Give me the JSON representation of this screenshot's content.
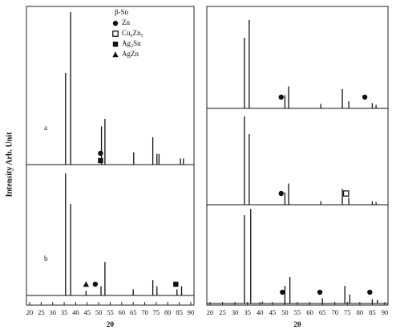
{
  "chart_data": [
    {
      "type": "spectrum",
      "ylabel": "Intensity  Arb. Unit",
      "xlabel": "2θ",
      "xlim": [
        20,
        90
      ],
      "xticks": [
        20,
        25,
        30,
        35,
        40,
        45,
        50,
        55,
        60,
        65,
        70,
        75,
        80,
        85,
        90
      ],
      "color": "#111111",
      "legend": [
        {
          "label": "β-Sn"
        },
        {
          "label": "Zn",
          "symbol": "circle"
        },
        {
          "label": "Cu₆Zn₅",
          "symbol": "open-square"
        },
        {
          "label": "Ag₃Sn",
          "symbol": "square"
        },
        {
          "label": "AgZn",
          "symbol": "triangle"
        }
      ],
      "series": [
        {
          "name": "a",
          "x": [
            35.6,
            37.8,
            51.2,
            52.7,
            65.2,
            73.5,
            75.3,
            76.2,
            85.5,
            86.8
          ],
          "values": [
            60,
            100,
            25,
            30,
            8,
            18,
            7,
            7,
            4,
            4
          ]
        },
        {
          "name": "b",
          "x": [
            35.6,
            37.8,
            44.5,
            51,
            52.7,
            65,
            73.5,
            75.3,
            84,
            86
          ],
          "values": [
            80,
            60,
            3,
            6,
            22,
            4,
            10,
            6,
            4,
            6
          ]
        }
      ],
      "markers": [
        {
          "series": 0,
          "x": 50.8,
          "symbol": "circle"
        },
        {
          "series": 0,
          "x": 50.8,
          "symbol": "square"
        },
        {
          "series": 1,
          "x": 44.5,
          "symbol": "triangle"
        },
        {
          "series": 1,
          "x": 48.5,
          "symbol": "circle"
        },
        {
          "series": 1,
          "x": 83.5,
          "symbol": "square"
        }
      ]
    },
    {
      "type": "spectrum",
      "xlabel": "2θ",
      "xlim": [
        20,
        90
      ],
      "xticks": [
        20,
        25,
        30,
        35,
        40,
        45,
        50,
        55,
        60,
        65,
        70,
        75,
        80,
        85,
        90
      ],
      "color": "#111111",
      "series": [
        {
          "x": [
            33.8,
            35.7,
            50,
            51.5,
            64.4,
            73,
            75.6,
            85,
            86.5
          ],
          "values": [
            80,
            100,
            15,
            25,
            5,
            22,
            8,
            6,
            4
          ]
        },
        {
          "x": [
            33.8,
            35.7,
            50,
            51.5,
            64.4,
            73,
            75.6,
            85,
            86.5
          ],
          "values": [
            100,
            80,
            14,
            24,
            4,
            18,
            8,
            4,
            3
          ]
        },
        {
          "x": [
            33.8,
            36.3,
            41,
            50,
            52,
            65,
            74,
            76,
            85,
            87
          ],
          "values": [
            100,
            107,
            2,
            20,
            30,
            6,
            20,
            10,
            5,
            4
          ]
        }
      ],
      "markers": [
        {
          "series": 0,
          "x": 48.5,
          "symbol": "circle"
        },
        {
          "series": 0,
          "x": 82,
          "symbol": "circle"
        },
        {
          "series": 1,
          "x": 48.5,
          "symbol": "circle"
        },
        {
          "series": 1,
          "x": 74.5,
          "symbol": "open-square"
        },
        {
          "series": 2,
          "x": 49,
          "symbol": "circle"
        },
        {
          "series": 2,
          "x": 64,
          "symbol": "circle"
        },
        {
          "series": 2,
          "x": 84,
          "symbol": "circle"
        }
      ]
    }
  ]
}
